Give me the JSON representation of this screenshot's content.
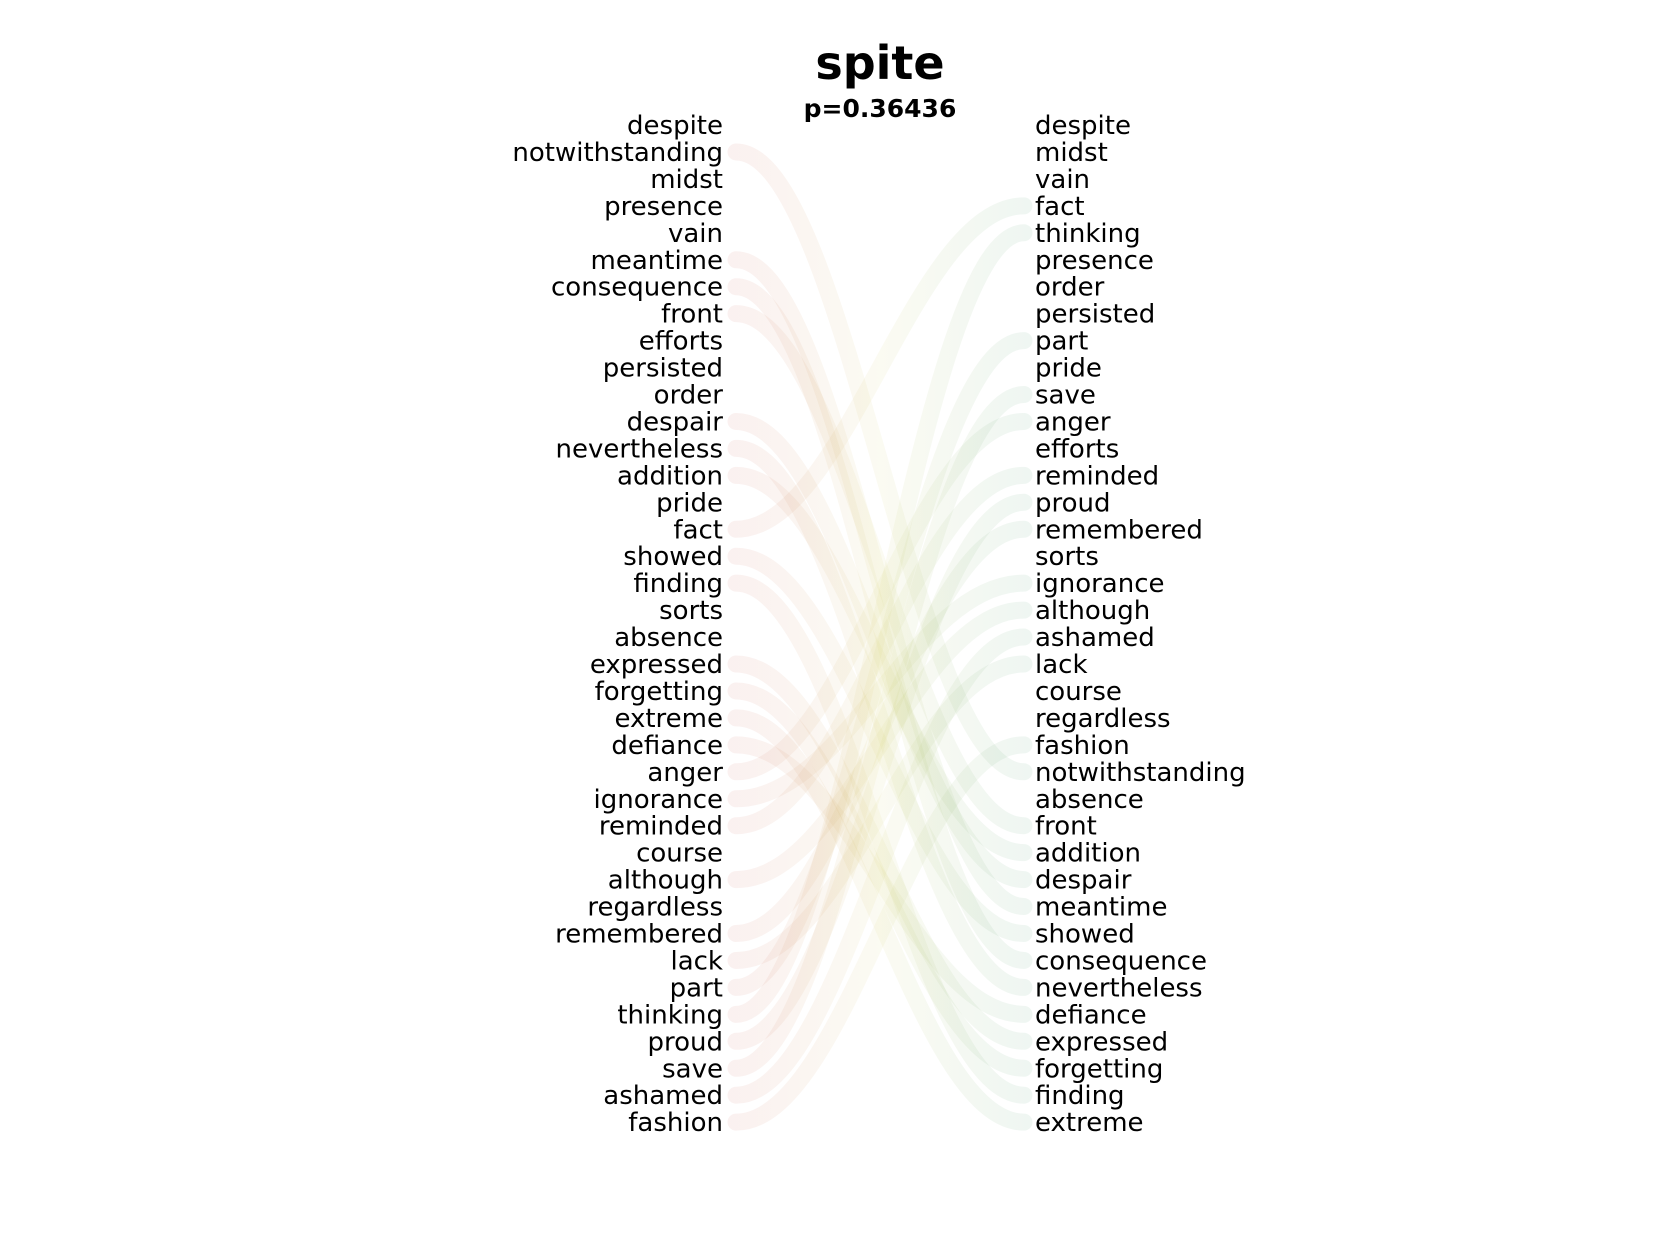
{
  "header": {
    "title": "spite",
    "subtitle": "p=0.36436"
  },
  "left_words": [
    "despite",
    "notwithstanding",
    "midst",
    "presence",
    "vain",
    "meantime",
    "consequence",
    "front",
    "efforts",
    "persisted",
    "order",
    "despair",
    "nevertheless",
    "addition",
    "pride",
    "fact",
    "showed",
    "finding",
    "sorts",
    "absence",
    "expressed",
    "forgetting",
    "extreme",
    "defiance",
    "anger",
    "ignorance",
    "reminded",
    "course",
    "although",
    "regardless",
    "remembered",
    "lack",
    "part",
    "thinking",
    "proud",
    "save",
    "ashamed",
    "fashion"
  ],
  "right_words": [
    "despite",
    "midst",
    "vain",
    "fact",
    "thinking",
    "presence",
    "order",
    "persisted",
    "part",
    "pride",
    "save",
    "anger",
    "efforts",
    "reminded",
    "proud",
    "remembered",
    "sorts",
    "ignorance",
    "although",
    "ashamed",
    "lack",
    "course",
    "regardless",
    "fashion",
    "notwithstanding",
    "absence",
    "front",
    "addition",
    "despair",
    "meantime",
    "showed",
    "consequence",
    "nevertheless",
    "defiance",
    "expressed",
    "forgetting",
    "finding",
    "extreme"
  ],
  "colors": {
    "text": "#000000",
    "moved_down": "#c0392b",
    "moved_up": "#1e8449",
    "background": "#ffffff"
  },
  "ribbon_opacity": 0.07
}
